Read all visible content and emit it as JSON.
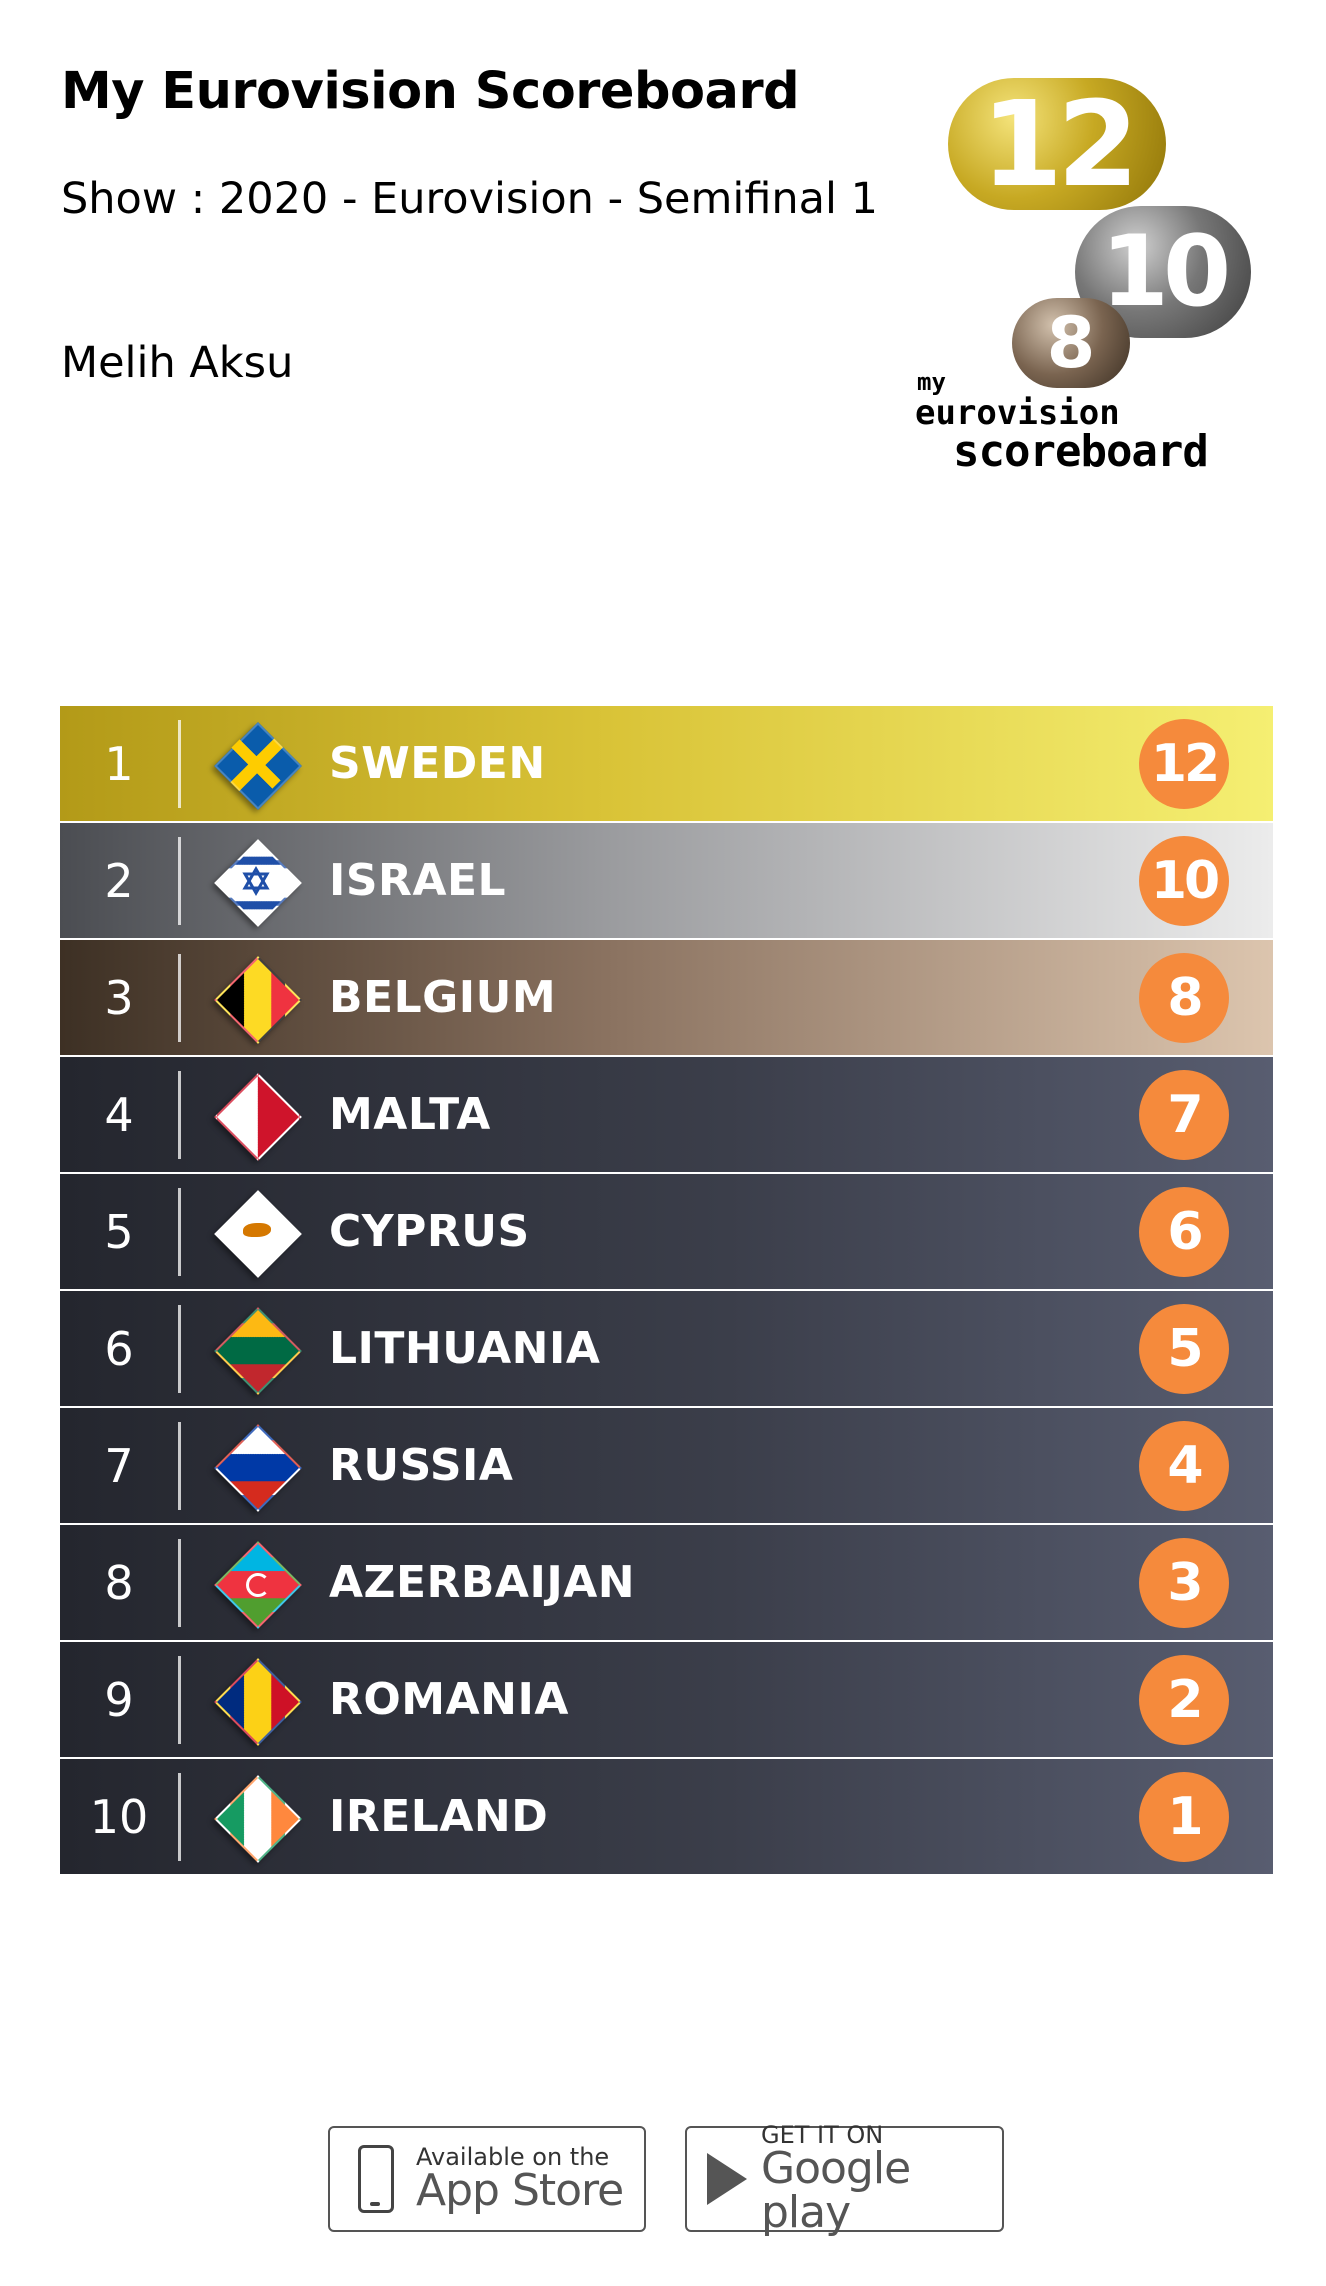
{
  "header": {
    "title": "My Eurovision Scoreboard",
    "show": "Show : 2020 - Eurovision - Semifinal 1",
    "author": "Melih Aksu"
  },
  "logo": {
    "bubble_12": "12",
    "bubble_10": "10",
    "bubble_8": "8",
    "text_my": "my",
    "text_eurovision": "eurovision",
    "text_scoreboard": "scoreboard"
  },
  "scoreboard": {
    "rows": [
      {
        "rank": "1",
        "country": "SWEDEN",
        "points": "12",
        "flag": "sweden-flag-icon"
      },
      {
        "rank": "2",
        "country": "ISRAEL",
        "points": "10",
        "flag": "israel-flag-icon"
      },
      {
        "rank": "3",
        "country": "BELGIUM",
        "points": "8",
        "flag": "belgium-flag-icon"
      },
      {
        "rank": "4",
        "country": "MALTA",
        "points": "7",
        "flag": "malta-flag-icon"
      },
      {
        "rank": "5",
        "country": "CYPRUS",
        "points": "6",
        "flag": "cyprus-flag-icon"
      },
      {
        "rank": "6",
        "country": "LITHUANIA",
        "points": "5",
        "flag": "lithuania-flag-icon"
      },
      {
        "rank": "7",
        "country": "RUSSIA",
        "points": "4",
        "flag": "russia-flag-icon"
      },
      {
        "rank": "8",
        "country": "AZERBAIJAN",
        "points": "3",
        "flag": "azerbaijan-flag-icon"
      },
      {
        "rank": "9",
        "country": "ROMANIA",
        "points": "2",
        "flag": "romania-flag-icon"
      },
      {
        "rank": "10",
        "country": "IRELAND",
        "points": "1",
        "flag": "ireland-flag-icon"
      }
    ]
  },
  "colors": {
    "points_badge": "#f58a3c",
    "gold": "#d9c337",
    "silver": "#9a9b9e",
    "bronze": "#8a7260",
    "default_row": "#3b3e4a"
  },
  "stores": {
    "apple_small": "Available on the",
    "apple_big": "App Store",
    "google_small": "GET IT ON",
    "google_big": "Google play"
  }
}
